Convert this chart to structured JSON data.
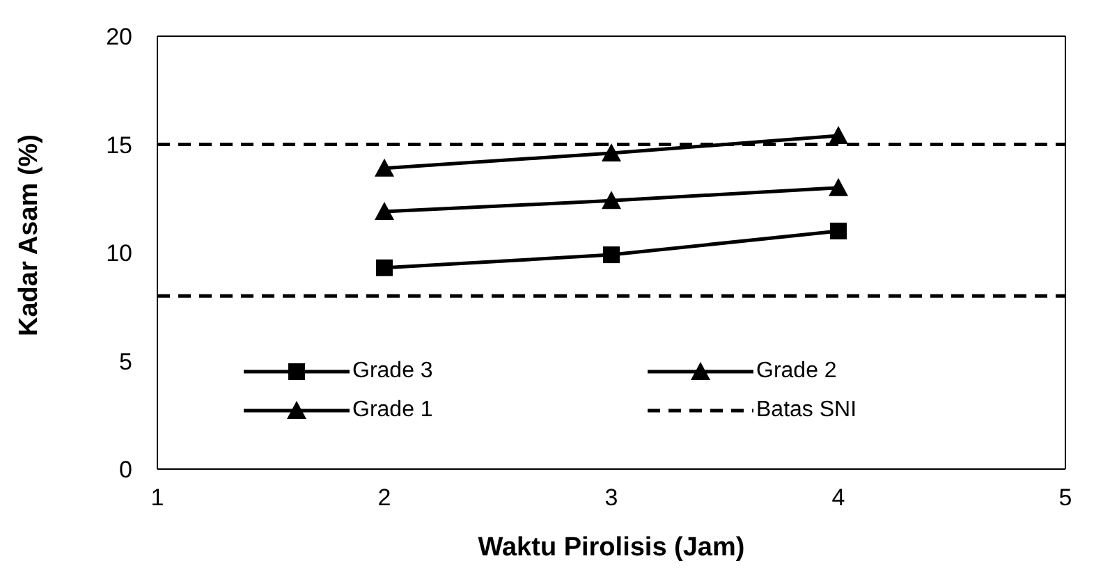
{
  "chart_data": {
    "type": "line",
    "xlabel": "Waktu Pirolisis (Jam)",
    "ylabel": "Kadar Asam (%)",
    "x": [
      2,
      3,
      4
    ],
    "series": [
      {
        "name": "Grade 3",
        "color": "#000000",
        "marker": "square",
        "values": [
          9.3,
          9.9,
          11.0
        ]
      },
      {
        "name": "Grade 2",
        "color": "#000000",
        "marker": "triangle",
        "values": [
          11.9,
          12.4,
          13.0
        ]
      },
      {
        "name": "Grade 1",
        "color": "#000000",
        "marker": "triangle",
        "values": [
          13.9,
          14.6,
          15.4
        ]
      }
    ],
    "ref_lines": [
      {
        "axis": "y",
        "value": 15,
        "label": "Batas SNI",
        "color": "#000000",
        "line_style": "dashed"
      },
      {
        "axis": "y",
        "value": 8,
        "color": "#000000",
        "line_style": "dashed"
      }
    ],
    "xlim": [
      1,
      5
    ],
    "xticks": [
      1,
      2,
      3,
      4,
      5
    ],
    "ylim": [
      0,
      20
    ],
    "yticks": [
      0,
      5,
      10,
      15,
      20
    ],
    "grid": false,
    "legend": "bottom",
    "line_style": "solid"
  }
}
